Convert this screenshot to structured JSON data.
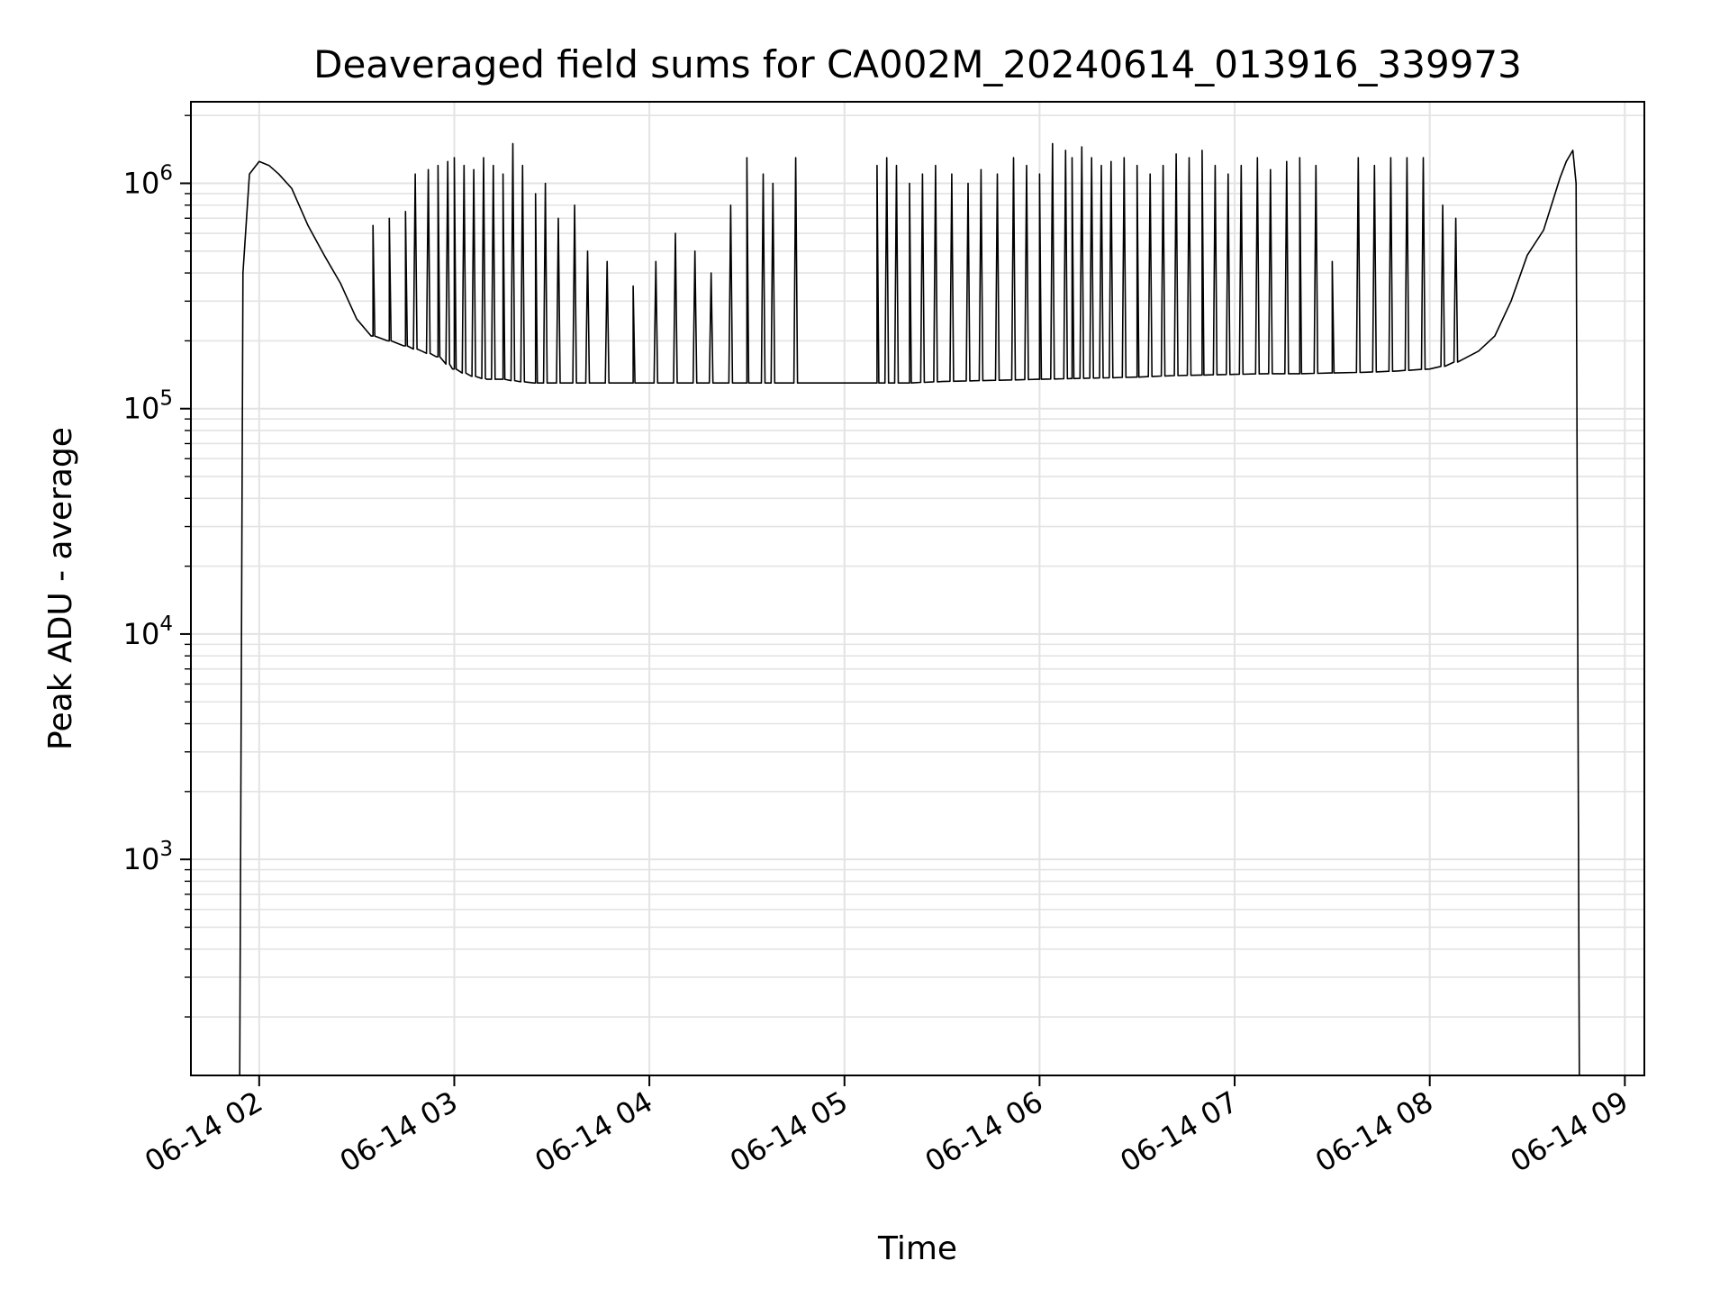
{
  "chart_data": {
    "type": "line",
    "title": "Deaveraged field sums for CA002M_20240614_013916_339973",
    "xlabel": "Time",
    "ylabel": "Peak ADU - average",
    "yscale": "log",
    "ylim": [
      110,
      2300000
    ],
    "xlim": [
      "2024-06-14T01:39:00",
      "2024-06-14T09:06:00"
    ],
    "grid": true,
    "x_tick_labels": [
      "06-14 02",
      "06-14 03",
      "06-14 04",
      "06-14 05",
      "06-14 06",
      "06-14 07",
      "06-14 08",
      "06-14 09"
    ],
    "y_tick_labels": [
      {
        "base": "10",
        "exp": "3"
      },
      {
        "base": "10",
        "exp": "4"
      },
      {
        "base": "10",
        "exp": "5"
      },
      {
        "base": "10",
        "exp": "6"
      }
    ],
    "line_color": "#000000",
    "series": [
      {
        "x": [
          "2024-06-14T01:54:00",
          "2024-06-14T01:55:00",
          "2024-06-14T01:57:00",
          "2024-06-14T02:00:00",
          "2024-06-14T02:03:00",
          "2024-06-14T02:06:00",
          "2024-06-14T02:10:00",
          "2024-06-14T02:15:00",
          "2024-06-14T02:20:00",
          "2024-06-14T02:25:00",
          "2024-06-14T02:30:00",
          "2024-06-14T02:35:00",
          "2024-06-14T02:40:00",
          "2024-06-14T02:45:00",
          "2024-06-14T02:50:00",
          "2024-06-14T02:55:00",
          "2024-06-14T03:00:00",
          "2024-06-14T03:05:00",
          "2024-06-14T03:10:00",
          "2024-06-14T03:15:00",
          "2024-06-14T03:20:00",
          "2024-06-14T03:25:00",
          "2024-06-14T03:30:00",
          "2024-06-14T03:35:00",
          "2024-06-14T03:40:00",
          "2024-06-14T03:45:00",
          "2024-06-14T03:50:00",
          "2024-06-14T03:55:00",
          "2024-06-14T04:00:00",
          "2024-06-14T04:10:00",
          "2024-06-14T04:20:00",
          "2024-06-14T04:30:00",
          "2024-06-14T04:40:00",
          "2024-06-14T04:50:00",
          "2024-06-14T05:00:00",
          "2024-06-14T05:10:00",
          "2024-06-14T05:20:00",
          "2024-06-14T05:30:00",
          "2024-06-14T05:40:00",
          "2024-06-14T05:50:00",
          "2024-06-14T06:00:00",
          "2024-06-14T06:10:00",
          "2024-06-14T06:20:00",
          "2024-06-14T06:30:00",
          "2024-06-14T06:40:00",
          "2024-06-14T06:50:00",
          "2024-06-14T07:00:00",
          "2024-06-14T07:10:00",
          "2024-06-14T07:20:00",
          "2024-06-14T07:30:00",
          "2024-06-14T07:40:00",
          "2024-06-14T07:50:00",
          "2024-06-14T08:00:00",
          "2024-06-14T08:05:00",
          "2024-06-14T08:10:00",
          "2024-06-14T08:15:00",
          "2024-06-14T08:20:00",
          "2024-06-14T08:25:00",
          "2024-06-14T08:30:00",
          "2024-06-14T08:35:00",
          "2024-06-14T08:38:00",
          "2024-06-14T08:40:00",
          "2024-06-14T08:42:00",
          "2024-06-14T08:44:00",
          "2024-06-14T08:45:00",
          "2024-06-14T08:46:00"
        ],
        "y": [
          110,
          400000,
          1100000,
          1250000,
          1200000,
          1100000,
          950000,
          650000,
          480000,
          360000,
          250000,
          210000,
          200000,
          190000,
          180000,
          170000,
          150000,
          140000,
          135000,
          135000,
          132000,
          130000,
          130000,
          130000,
          130000,
          130000,
          130000,
          130000,
          130000,
          130000,
          130000,
          130000,
          130000,
          130000,
          130000,
          130000,
          130000,
          132000,
          133000,
          134000,
          135000,
          136000,
          137000,
          138000,
          140000,
          141000,
          142000,
          143000,
          143000,
          144000,
          145000,
          147000,
          150000,
          155000,
          165000,
          180000,
          210000,
          300000,
          480000,
          620000,
          850000,
          1050000,
          1250000,
          1400000,
          1000000,
          110
        ],
        "spikes": [
          {
            "x": "2024-06-14T02:35:00",
            "y": 650000
          },
          {
            "x": "2024-06-14T02:40:00",
            "y": 700000
          },
          {
            "x": "2024-06-14T02:45:00",
            "y": 750000
          },
          {
            "x": "2024-06-14T02:48:00",
            "y": 1100000
          },
          {
            "x": "2024-06-14T02:52:00",
            "y": 1150000
          },
          {
            "x": "2024-06-14T02:55:00",
            "y": 1200000
          },
          {
            "x": "2024-06-14T02:58:00",
            "y": 1250000
          },
          {
            "x": "2024-06-14T03:00:00",
            "y": 1300000
          },
          {
            "x": "2024-06-14T03:03:00",
            "y": 1200000
          },
          {
            "x": "2024-06-14T03:06:00",
            "y": 1150000
          },
          {
            "x": "2024-06-14T03:09:00",
            "y": 1300000
          },
          {
            "x": "2024-06-14T03:12:00",
            "y": 1200000
          },
          {
            "x": "2024-06-14T03:15:00",
            "y": 1100000
          },
          {
            "x": "2024-06-14T03:18:00",
            "y": 1500000
          },
          {
            "x": "2024-06-14T03:21:00",
            "y": 1200000
          },
          {
            "x": "2024-06-14T03:25:00",
            "y": 900000
          },
          {
            "x": "2024-06-14T03:28:00",
            "y": 1000000
          },
          {
            "x": "2024-06-14T03:32:00",
            "y": 700000
          },
          {
            "x": "2024-06-14T03:37:00",
            "y": 800000
          },
          {
            "x": "2024-06-14T03:41:00",
            "y": 500000
          },
          {
            "x": "2024-06-14T03:47:00",
            "y": 450000
          },
          {
            "x": "2024-06-14T03:55:00",
            "y": 350000
          },
          {
            "x": "2024-06-14T04:02:00",
            "y": 450000
          },
          {
            "x": "2024-06-14T04:08:00",
            "y": 600000
          },
          {
            "x": "2024-06-14T04:14:00",
            "y": 500000
          },
          {
            "x": "2024-06-14T04:19:00",
            "y": 400000
          },
          {
            "x": "2024-06-14T04:25:00",
            "y": 800000
          },
          {
            "x": "2024-06-14T04:30:00",
            "y": 1300000
          },
          {
            "x": "2024-06-14T04:35:00",
            "y": 1100000
          },
          {
            "x": "2024-06-14T04:38:00",
            "y": 1000000
          },
          {
            "x": "2024-06-14T04:45:00",
            "y": 1300000
          },
          {
            "x": "2024-06-14T05:10:00",
            "y": 1200000
          },
          {
            "x": "2024-06-14T05:13:00",
            "y": 1300000
          },
          {
            "x": "2024-06-14T05:16:00",
            "y": 1200000
          },
          {
            "x": "2024-06-14T05:20:00",
            "y": 1000000
          },
          {
            "x": "2024-06-14T05:24:00",
            "y": 1100000
          },
          {
            "x": "2024-06-14T05:28:00",
            "y": 1200000
          },
          {
            "x": "2024-06-14T05:33:00",
            "y": 1100000
          },
          {
            "x": "2024-06-14T05:38:00",
            "y": 1000000
          },
          {
            "x": "2024-06-14T05:42:00",
            "y": 1150000
          },
          {
            "x": "2024-06-14T05:47:00",
            "y": 1100000
          },
          {
            "x": "2024-06-14T05:52:00",
            "y": 1300000
          },
          {
            "x": "2024-06-14T05:56:00",
            "y": 1200000
          },
          {
            "x": "2024-06-14T06:00:00",
            "y": 1100000
          },
          {
            "x": "2024-06-14T06:04:00",
            "y": 1500000
          },
          {
            "x": "2024-06-14T06:08:00",
            "y": 1400000
          },
          {
            "x": "2024-06-14T06:10:00",
            "y": 1300000
          },
          {
            "x": "2024-06-14T06:13:00",
            "y": 1450000
          },
          {
            "x": "2024-06-14T06:16:00",
            "y": 1300000
          },
          {
            "x": "2024-06-14T06:19:00",
            "y": 1200000
          },
          {
            "x": "2024-06-14T06:22:00",
            "y": 1250000
          },
          {
            "x": "2024-06-14T06:26:00",
            "y": 1300000
          },
          {
            "x": "2024-06-14T06:30:00",
            "y": 1200000
          },
          {
            "x": "2024-06-14T06:34:00",
            "y": 1100000
          },
          {
            "x": "2024-06-14T06:38:00",
            "y": 1200000
          },
          {
            "x": "2024-06-14T06:42:00",
            "y": 1350000
          },
          {
            "x": "2024-06-14T06:46:00",
            "y": 1300000
          },
          {
            "x": "2024-06-14T06:50:00",
            "y": 1400000
          },
          {
            "x": "2024-06-14T06:54:00",
            "y": 1200000
          },
          {
            "x": "2024-06-14T06:58:00",
            "y": 1100000
          },
          {
            "x": "2024-06-14T07:02:00",
            "y": 1200000
          },
          {
            "x": "2024-06-14T07:07:00",
            "y": 1300000
          },
          {
            "x": "2024-06-14T07:11:00",
            "y": 1150000
          },
          {
            "x": "2024-06-14T07:16:00",
            "y": 1250000
          },
          {
            "x": "2024-06-14T07:20:00",
            "y": 1300000
          },
          {
            "x": "2024-06-14T07:25:00",
            "y": 1200000
          },
          {
            "x": "2024-06-14T07:30:00",
            "y": 450000
          },
          {
            "x": "2024-06-14T07:38:00",
            "y": 1300000
          },
          {
            "x": "2024-06-14T07:43:00",
            "y": 1200000
          },
          {
            "x": "2024-06-14T07:48:00",
            "y": 1300000
          },
          {
            "x": "2024-06-14T07:53:00",
            "y": 1300000
          },
          {
            "x": "2024-06-14T07:58:00",
            "y": 1300000
          },
          {
            "x": "2024-06-14T08:04:00",
            "y": 800000
          },
          {
            "x": "2024-06-14T08:08:00",
            "y": 700000
          }
        ]
      }
    ]
  }
}
